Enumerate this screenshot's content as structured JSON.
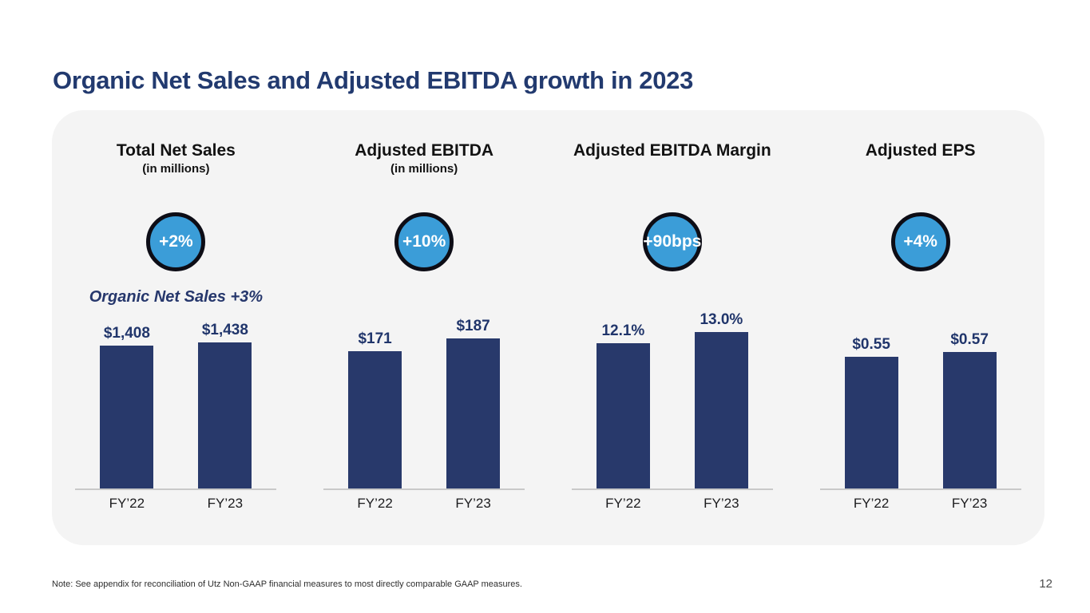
{
  "page": {
    "title": "Organic Net Sales and Adjusted EBITDA growth in 2023",
    "footnote": "Note: See appendix for reconciliation of Utz Non-GAAP financial measures to most directly comparable GAAP measures.",
    "page_number": "12"
  },
  "colors": {
    "title_navy": "#223A6F",
    "bar_navy": "#28396B",
    "value_label_navy": "#20356B",
    "badge_blue": "#3B9DD8",
    "badge_border": "#0D0D16",
    "card_background": "#F4F4F4",
    "baseline_gray": "#C9C9C9"
  },
  "chart_data": [
    {
      "type": "bar",
      "title": "Total Net Sales",
      "subtitle": "(in millions)",
      "badge": "+2%",
      "note": "Organic Net Sales +3%",
      "categories": [
        "FY’22",
        "FY’23"
      ],
      "values": [
        1408,
        1438
      ],
      "value_labels": [
        "$1,408",
        "$1,438"
      ],
      "legend": "none",
      "grid": false
    },
    {
      "type": "bar",
      "title": "Adjusted EBITDA",
      "subtitle": "(in millions)",
      "badge": "+10%",
      "note": "",
      "categories": [
        "FY’22",
        "FY’23"
      ],
      "values": [
        171,
        187
      ],
      "value_labels": [
        "$171",
        "$187"
      ],
      "legend": "none",
      "grid": false
    },
    {
      "type": "bar",
      "title": "Adjusted EBITDA Margin",
      "subtitle": "",
      "badge": "+90bps",
      "note": "",
      "categories": [
        "FY’22",
        "FY’23"
      ],
      "values": [
        12.1,
        13.0
      ],
      "value_labels": [
        "12.1%",
        "13.0%"
      ],
      "legend": "none",
      "grid": false
    },
    {
      "type": "bar",
      "title": "Adjusted EPS",
      "subtitle": "",
      "badge": "+4%",
      "note": "",
      "categories": [
        "FY’22",
        "FY’23"
      ],
      "values": [
        0.55,
        0.57
      ],
      "value_labels": [
        "$0.55",
        "$0.57"
      ],
      "legend": "none",
      "grid": false
    }
  ]
}
